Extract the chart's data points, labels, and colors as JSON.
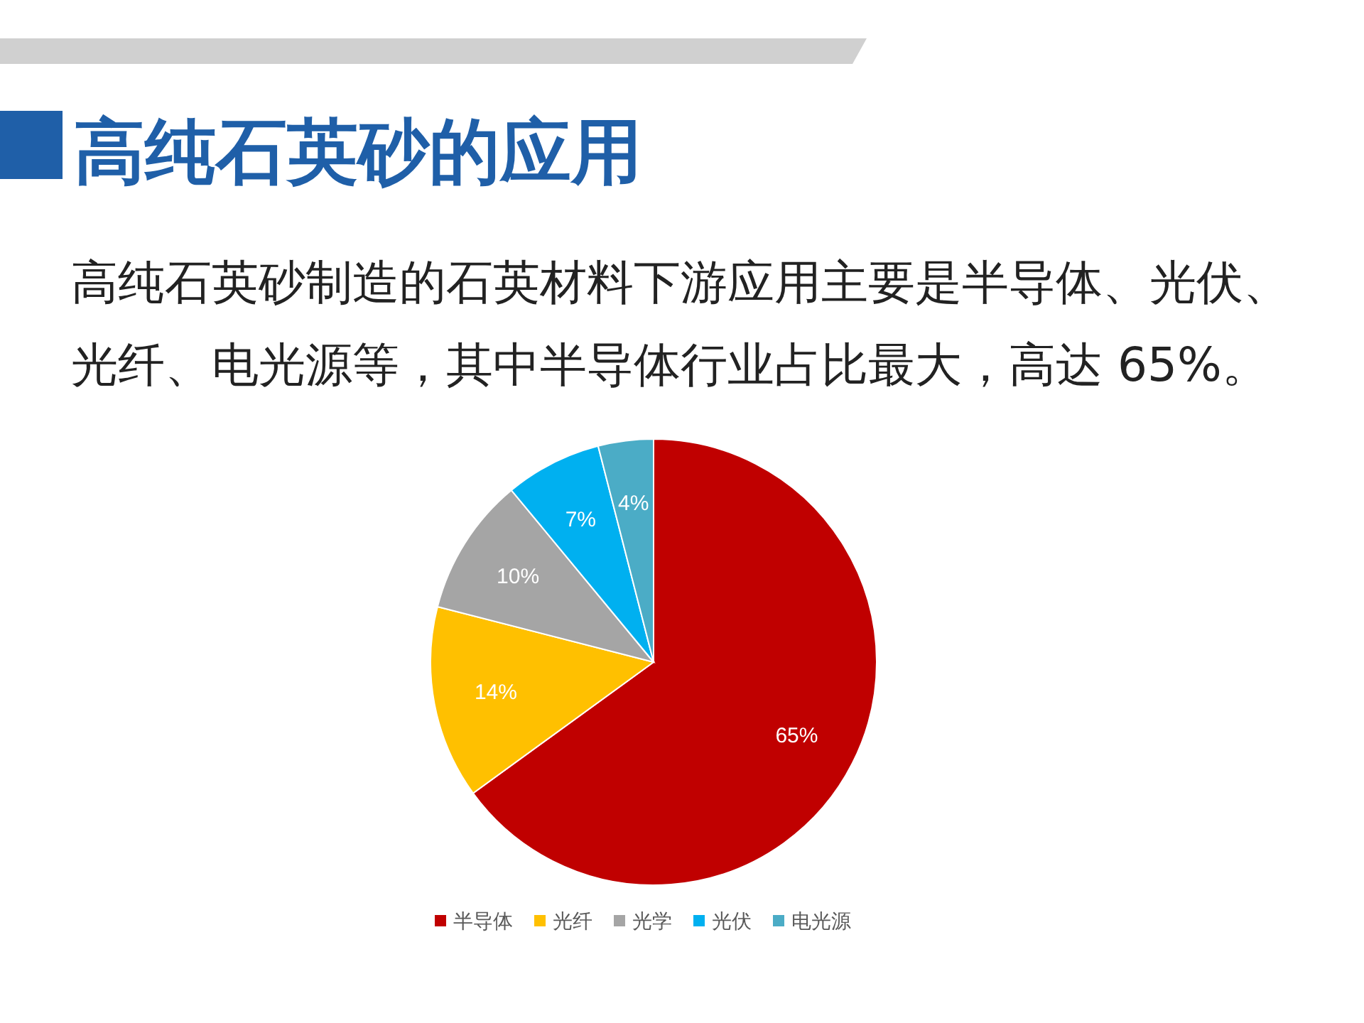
{
  "chart_data": {
    "type": "pie",
    "title": "高纯石英砂的应用",
    "subtitle": "高纯石英砂制造的石英材料下游应用主要是半导体、光伏、光纤、电光源等，其中半导体行业占比最大，高达 65%。",
    "categories": [
      "半导体",
      "光纤",
      "光学",
      "光伏",
      "电光源"
    ],
    "values": [
      65,
      14,
      10,
      7,
      4
    ],
    "colors": [
      "#c00000",
      "#ffc000",
      "#a5a5a5",
      "#00b0f0",
      "#4bacc6"
    ],
    "value_labels": [
      "65%",
      "14%",
      "10%",
      "7%",
      "4%"
    ],
    "legend": "bottom"
  }
}
